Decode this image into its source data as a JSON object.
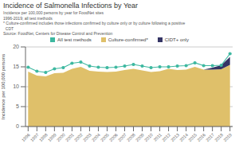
{
  "chart_data": {
    "type": "area",
    "title": "Incidence of Salmonella Infections by Year",
    "subtitle": [
      "Incidence per 100,000 persons by year for FoodNet sites",
      "1996-2019; all test methods",
      "* Culture-confirmed includes those infections confirmed by culture only or by culture following a positive",
      "  CDT",
      "Source: FoodNet, Centers for Disease Control and Prevention"
    ],
    "x": [
      1996,
      1997,
      1998,
      1999,
      2000,
      2001,
      2002,
      2003,
      2004,
      2005,
      2006,
      2007,
      2008,
      2009,
      2010,
      2011,
      2012,
      2013,
      2014,
      2015,
      2016,
      2017,
      2018,
      2019
    ],
    "series": [
      {
        "name": "All test methods",
        "type": "line",
        "marker": "circle",
        "color": "#3db8a0",
        "values": [
          14.9,
          13.9,
          13.6,
          14.5,
          14.8,
          15.9,
          16.2,
          15.2,
          14.9,
          14.8,
          14.9,
          15.2,
          15.6,
          15.2,
          14.8,
          15.0,
          15.0,
          15.2,
          15.3,
          16.0,
          15.3,
          15.3,
          15.4,
          18.3
        ]
      },
      {
        "name": "Culture-confirmed*",
        "type": "area",
        "color": "#dfc06a",
        "values": [
          13.8,
          12.8,
          12.6,
          13.4,
          13.5,
          14.5,
          15.0,
          14.0,
          13.8,
          13.7,
          13.8,
          14.2,
          14.5,
          14.1,
          13.7,
          13.9,
          14.5,
          14.2,
          14.3,
          15.0,
          14.3,
          14.3,
          14.4,
          15.5
        ]
      },
      {
        "name": "CIDT+ only",
        "type": "area",
        "color": "#353565",
        "values": [
          0.0,
          0.0,
          0.0,
          0.0,
          0.0,
          0.0,
          0.0,
          0.0,
          0.0,
          0.0,
          0.0,
          0.0,
          0.0,
          0.0,
          0.0,
          0.0,
          0.0,
          0.0,
          0.0,
          0.0,
          0.0,
          0.5,
          1.0,
          2.0
        ]
      }
    ],
    "stacked": true,
    "ylabel": "Incidence per 100,000 persons",
    "xlim": [
      1995.7,
      2019.3
    ],
    "xticks": [
      1996,
      1997,
      1998,
      1999,
      2000,
      2001,
      2002,
      2003,
      2004,
      2005,
      2006,
      2007,
      2008,
      2009,
      2010,
      2011,
      2012,
      2013,
      2014,
      2015,
      2016,
      2017,
      2018,
      2019
    ],
    "ylim": [
      0,
      20
    ],
    "yticks": [
      0,
      5,
      10,
      15,
      20
    ],
    "grid": true,
    "legend": "top"
  }
}
